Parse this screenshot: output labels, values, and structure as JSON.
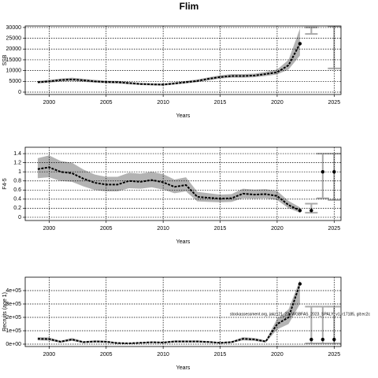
{
  "title": "Flim",
  "chart_data": [
    {
      "type": "line",
      "ylabel": "SSB",
      "xlabel": "Years",
      "xlim": [
        1997.9,
        2025.6
      ],
      "xticks": [
        2000,
        2005,
        2010,
        2015,
        2020,
        2025
      ],
      "ylim": [
        -1100,
        30700
      ],
      "yticks": [
        0,
        5000,
        10000,
        15000,
        20000,
        25000,
        30000
      ],
      "grid": true,
      "x": [
        1999,
        2000,
        2001,
        2002,
        2003,
        2004,
        2005,
        2006,
        2007,
        2008,
        2009,
        2010,
        2011,
        2012,
        2013,
        2014,
        2015,
        2016,
        2017,
        2018,
        2019,
        2020,
        2021,
        2022
      ],
      "values": [
        4600,
        5000,
        5600,
        5900,
        5500,
        5000,
        4700,
        4600,
        4200,
        3800,
        3600,
        3500,
        4000,
        4600,
        5200,
        6200,
        7000,
        7500,
        7500,
        7700,
        8400,
        9200,
        12500,
        22500
      ],
      "lower": [
        4000,
        4400,
        4900,
        5100,
        4800,
        4400,
        4100,
        4000,
        3600,
        3300,
        3100,
        3000,
        3500,
        4000,
        4600,
        5500,
        6300,
        6700,
        6700,
        6900,
        7500,
        8200,
        10500,
        17000
      ],
      "upper": [
        5200,
        5700,
        6300,
        6700,
        6200,
        5700,
        5300,
        5200,
        4800,
        4300,
        4100,
        4000,
        4600,
        5200,
        5900,
        6900,
        7800,
        8400,
        8400,
        8600,
        9400,
        10500,
        15000,
        29500
      ],
      "intervals": {
        "x": [
          2023,
          2025
        ],
        "lower": [
          27000,
          11000
        ],
        "upper": [
          30000,
          30500
        ]
      }
    },
    {
      "type": "line",
      "ylabel": "F4-5",
      "xlabel": "Years",
      "xlim": [
        1997.9,
        2025.6
      ],
      "xticks": [
        2000,
        2005,
        2010,
        2015,
        2020,
        2025
      ],
      "ylim": [
        -0.07,
        1.54
      ],
      "yticks": [
        0,
        0.2,
        0.4,
        0.6,
        0.8,
        1,
        1.2,
        1.4
      ],
      "grid": true,
      "x": [
        1999,
        2000,
        2001,
        2002,
        2003,
        2004,
        2005,
        2006,
        2007,
        2008,
        2009,
        2010,
        2011,
        2012,
        2013,
        2014,
        2015,
        2016,
        2017,
        2018,
        2019,
        2020,
        2021,
        2022
      ],
      "values": [
        1.06,
        1.1,
        1.0,
        0.97,
        0.85,
        0.76,
        0.72,
        0.72,
        0.8,
        0.78,
        0.82,
        0.77,
        0.67,
        0.71,
        0.45,
        0.43,
        0.41,
        0.42,
        0.52,
        0.5,
        0.51,
        0.47,
        0.27,
        0.15
      ],
      "lower": [
        0.86,
        0.88,
        0.8,
        0.78,
        0.68,
        0.6,
        0.57,
        0.57,
        0.64,
        0.63,
        0.66,
        0.61,
        0.53,
        0.57,
        0.35,
        0.34,
        0.33,
        0.34,
        0.42,
        0.41,
        0.42,
        0.38,
        0.2,
        0.1
      ],
      "upper": [
        1.3,
        1.36,
        1.24,
        1.2,
        1.05,
        0.94,
        0.89,
        0.89,
        0.98,
        0.96,
        1.0,
        0.95,
        0.83,
        0.88,
        0.56,
        0.53,
        0.5,
        0.51,
        0.63,
        0.61,
        0.62,
        0.58,
        0.36,
        0.22
      ],
      "intervals": {
        "x": [
          2023,
          2024,
          2025
        ],
        "values": [
          0.15,
          1.0,
          1.0
        ],
        "lower": [
          0.1,
          0.42,
          0.38
        ],
        "upper": [
          0.3,
          1.4,
          1.4
        ]
      }
    },
    {
      "type": "line",
      "ylabel": "Recruits (age 1)",
      "xlabel": "Years",
      "annotation": "stockassessment.org, jakz121_22_WGBFAS_2023_SPALY_v1, r17185, git:ec2c",
      "xlim": [
        1997.9,
        2025.6
      ],
      "xticks": [
        2000,
        2005,
        2010,
        2015,
        2020,
        2025
      ],
      "ylim": [
        -17600,
        500000
      ],
      "yticks": [
        {
          "value": 0,
          "label": "0e+00"
        },
        {
          "value": 100000,
          "label": "1e+05"
        },
        {
          "value": 200000,
          "label": "2e+05"
        },
        {
          "value": 300000,
          "label": "3e+05"
        },
        {
          "value": 400000,
          "label": "4e+05"
        }
      ],
      "grid": true,
      "x": [
        1999,
        2000,
        2001,
        2002,
        2003,
        2004,
        2005,
        2006,
        2007,
        2008,
        2009,
        2010,
        2011,
        2012,
        2013,
        2014,
        2015,
        2016,
        2017,
        2018,
        2019,
        2020,
        2021,
        2022
      ],
      "values": [
        40000,
        38000,
        18000,
        35000,
        15000,
        20000,
        18000,
        8000,
        6000,
        10000,
        14000,
        12000,
        20000,
        20000,
        20000,
        16000,
        10000,
        15000,
        40000,
        35000,
        20000,
        150000,
        200000,
        450000
      ],
      "lower": [
        28000,
        26000,
        10000,
        24000,
        8000,
        12000,
        10000,
        3000,
        2000,
        5000,
        8000,
        6000,
        12000,
        12000,
        12000,
        9000,
        5000,
        8000,
        28000,
        24000,
        12000,
        110000,
        150000,
        300000
      ],
      "upper": [
        52000,
        50000,
        26000,
        46000,
        22000,
        28000,
        26000,
        13000,
        10000,
        15000,
        20000,
        18000,
        28000,
        28000,
        28000,
        23000,
        15000,
        22000,
        52000,
        46000,
        28000,
        190000,
        260000,
        480000
      ],
      "intervals": {
        "x": [
          2023,
          2024,
          2025
        ],
        "values": [
          35000,
          35000,
          35000
        ],
        "lower": [
          5000,
          5000,
          5000
        ],
        "upper": [
          280000,
          280000,
          280000
        ]
      }
    }
  ]
}
